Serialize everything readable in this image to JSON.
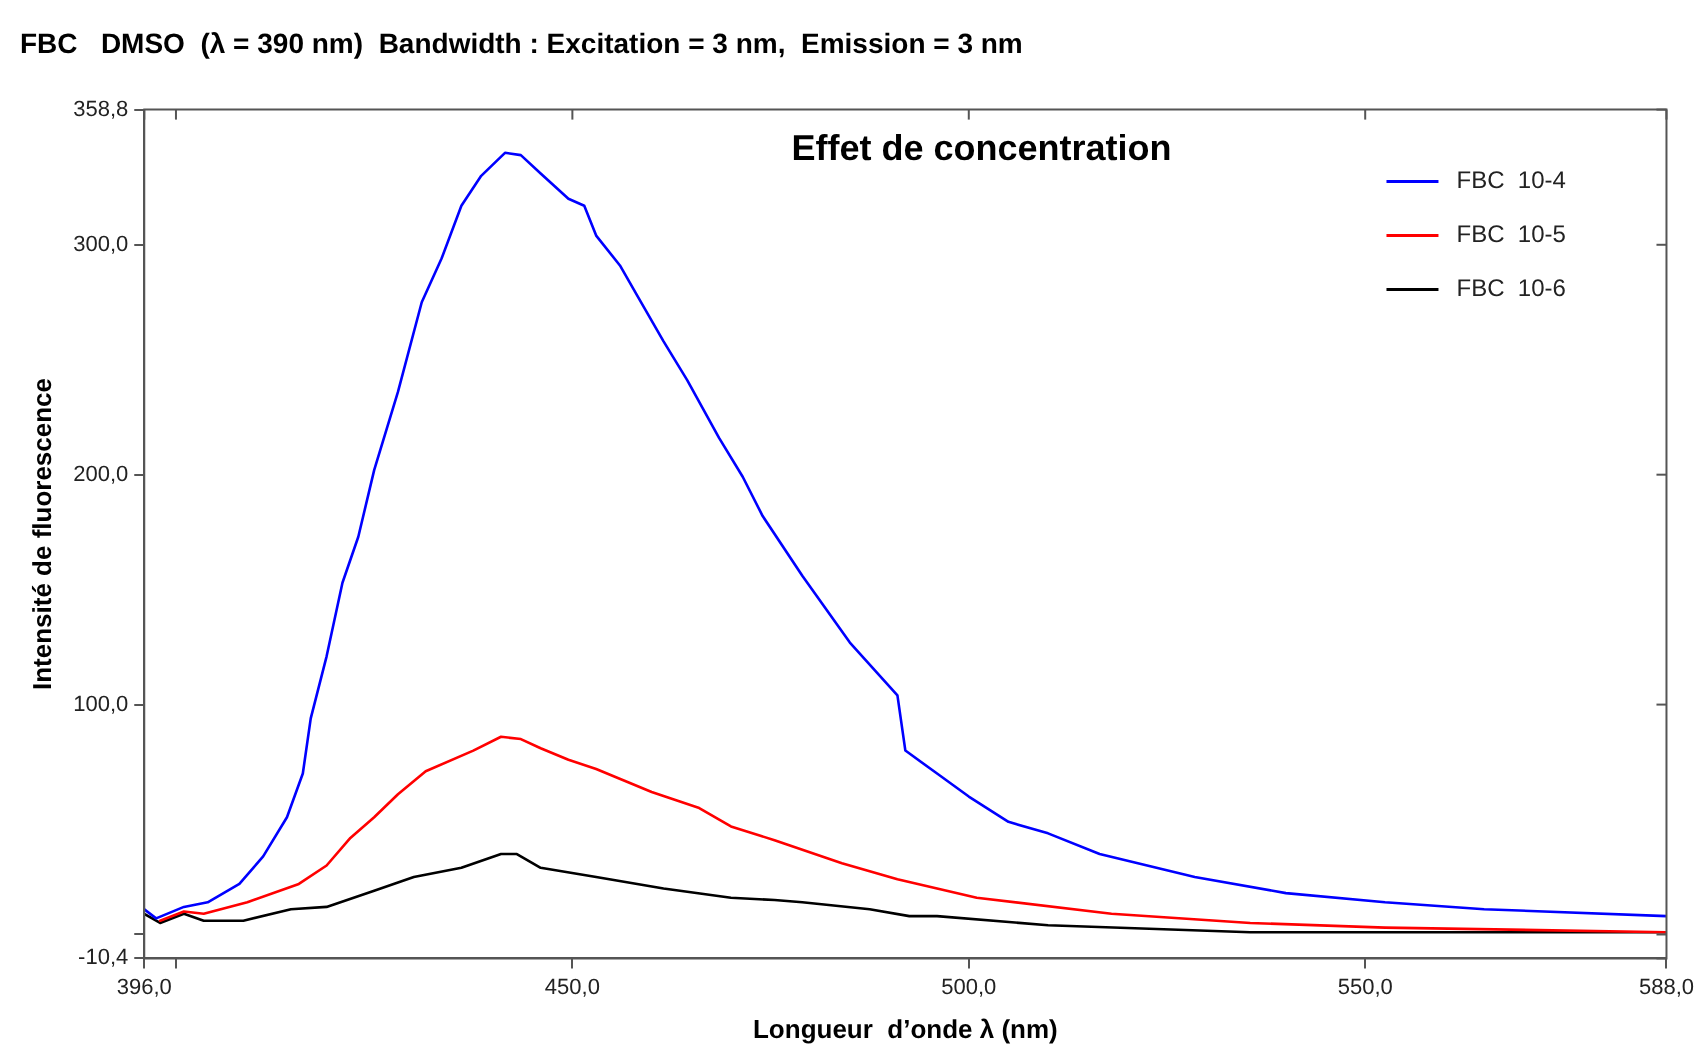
{
  "chart_data": {
    "type": "line",
    "title": "FBC   DMSO  (λ = 390 nm)  Bandwidth : Excitation = 3 nm,  Emission = 3 nm",
    "subtitle": "Effet de concentration",
    "xlabel": "Longueur  d’onde λ (nm)",
    "ylabel": "Intensité de fluorescence",
    "xlim": [
      396,
      588
    ],
    "xticks": [
      {
        "value": 396,
        "label": "396,0"
      },
      {
        "value": 400,
        "label": null
      },
      {
        "value": 450,
        "label": "450,0"
      },
      {
        "value": 500,
        "label": "500,0"
      },
      {
        "value": 550,
        "label": "550,0"
      },
      {
        "value": 588,
        "label": "588,0"
      }
    ],
    "ylim": [
      -10.4,
      358.8
    ],
    "yticks": [
      {
        "value": -10.4,
        "label": "-10,4"
      },
      {
        "value": 0,
        "label": null
      },
      {
        "value": 100,
        "label": "100,0"
      },
      {
        "value": 200,
        "label": "200,0"
      },
      {
        "value": 300,
        "label": "300,0"
      },
      {
        "value": 358.8,
        "label": "358,8"
      }
    ],
    "grid": false,
    "legend": "top right",
    "marker": "none",
    "line_style": "solid",
    "series": [
      {
        "name": "FBC  10-4",
        "color": "#0000ff",
        "x": [
          396,
          397.5,
          401,
          404,
          408,
          411,
          414,
          416,
          417,
          419,
          421,
          423,
          425,
          428,
          431,
          433.5,
          436,
          438.5,
          441.5,
          443.5,
          446,
          449.5,
          451.5,
          453,
          456,
          458,
          461.5,
          464.5,
          468.5,
          471.5,
          474,
          479,
          485,
          491,
          492,
          496,
          500,
          505,
          510,
          516.5,
          528.5,
          540,
          552.5,
          565,
          588
        ],
        "values": [
          11,
          7,
          12,
          14,
          22,
          34,
          51,
          70,
          94,
          121,
          153,
          173,
          202,
          236,
          275,
          294,
          317,
          330,
          340,
          339,
          331,
          320,
          317,
          304,
          291,
          279,
          258,
          241,
          216,
          199,
          182,
          156,
          127,
          104,
          80,
          70,
          60,
          49,
          44,
          35,
          25,
          18,
          14,
          11,
          8
        ]
      },
      {
        "name": "FBC  10-5",
        "color": "#ff0000",
        "x": [
          398,
          401,
          403.5,
          409,
          415.5,
          419,
          422,
          425,
          428,
          431.5,
          437.5,
          441,
          443.5,
          446,
          449.5,
          453,
          456.5,
          460,
          466,
          470,
          475.5,
          484,
          491,
          496,
          501,
          518,
          535.5,
          552.5,
          588
        ],
        "values": [
          6,
          10,
          9,
          14,
          22,
          30,
          42,
          51,
          61,
          71,
          80,
          86,
          85,
          81,
          76,
          72,
          67,
          62,
          55,
          47,
          41,
          31,
          24,
          20,
          16,
          9,
          5,
          3,
          1
        ]
      },
      {
        "name": "FBC  10-6",
        "color": "#000000",
        "x": [
          396,
          398,
          401,
          403.5,
          408.5,
          414.5,
          419,
          425,
          430,
          436,
          441,
          443,
          446,
          453,
          461.5,
          470,
          475.5,
          479,
          487.5,
          492.5,
          496,
          510,
          535.5,
          561,
          588
        ],
        "values": [
          9,
          5,
          9,
          6,
          6,
          11,
          12,
          19,
          25,
          29,
          35,
          35,
          29,
          25,
          20,
          16,
          15,
          14,
          11,
          8,
          8,
          4,
          1,
          1,
          1
        ]
      }
    ]
  }
}
